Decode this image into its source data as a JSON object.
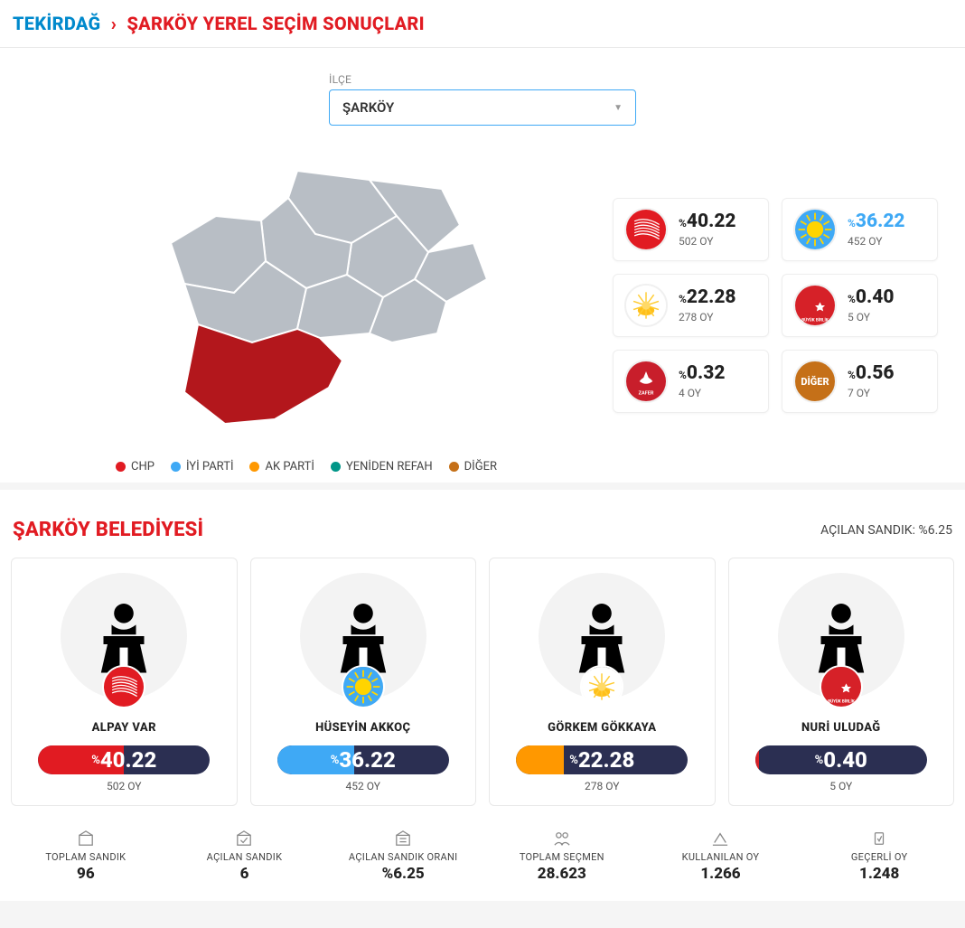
{
  "breadcrumb": {
    "province": "TEKİRDAĞ",
    "title": "ŞARKÖY YEREL SEÇİM SONUÇLARI"
  },
  "dropdown": {
    "label": "İLÇE",
    "value": "ŞARKÖY"
  },
  "colors": {
    "chp": "#e11b22",
    "iyi": "#3fa9f5",
    "akp": "#ff9800",
    "yrefah": "#009688",
    "bbp": "#d62128",
    "zafer": "#c81e2b",
    "diger": "#c57018",
    "map_empty": "#b8bec5",
    "map_selected": "#b3171c",
    "bar_bg": "#2b2f52"
  },
  "legend": [
    {
      "label": "CHP",
      "color": "#e11b22"
    },
    {
      "label": "İYİ PARTİ",
      "color": "#3fa9f5"
    },
    {
      "label": "AK PARTİ",
      "color": "#ff9800"
    },
    {
      "label": "YENİDEN REFAH",
      "color": "#009688"
    },
    {
      "label": "DİĞER",
      "color": "#c57018"
    }
  ],
  "party_cards": [
    {
      "party": "chp",
      "pct": "40.22",
      "votes": "502 OY",
      "color": "#e11b22"
    },
    {
      "party": "iyi",
      "pct": "36.22",
      "votes": "452 OY",
      "color": "#3fa9f5"
    },
    {
      "party": "akp",
      "pct": "22.28",
      "votes": "278 OY",
      "color": "#ff9800"
    },
    {
      "party": "bbp",
      "pct": "0.40",
      "votes": "5 OY",
      "color": "#d62128"
    },
    {
      "party": "zafer",
      "pct": "0.32",
      "votes": "4 OY",
      "color": "#c81e2b"
    },
    {
      "party": "diger",
      "pct": "0.56",
      "votes": "7 OY",
      "color": "#c57018",
      "label": "DİĞER"
    }
  ],
  "municipality": {
    "title": "ŞARKÖY BELEDİYESİ",
    "opened_label": "AÇILAN SANDIK: %6.25"
  },
  "candidates": [
    {
      "name": "ALPAY VAR",
      "party": "chp",
      "pct": "40.22",
      "votes": "502 OY",
      "bar_width": "50%",
      "bar_color": "#e11b22"
    },
    {
      "name": "HÜSEYİN AKKOÇ",
      "party": "iyi",
      "pct": "36.22",
      "votes": "452 OY",
      "bar_width": "45%",
      "bar_color": "#3fa9f5"
    },
    {
      "name": "GÖRKEM GÖKKAYA",
      "party": "akp",
      "pct": "22.28",
      "votes": "278 OY",
      "bar_width": "28%",
      "bar_color": "#ff9800"
    },
    {
      "name": "NURİ ULUDAĞ",
      "party": "bbp",
      "pct": "0.40",
      "votes": "5 OY",
      "bar_width": "2%",
      "bar_color": "#d62128"
    }
  ],
  "stats": [
    {
      "label": "TOPLAM SANDIK",
      "value": "96"
    },
    {
      "label": "AÇILAN SANDIK",
      "value": "6"
    },
    {
      "label": "AÇILAN SANDIK ORANI",
      "value": "%6.25"
    },
    {
      "label": "TOPLAM SEÇMEN",
      "value": "28.623"
    },
    {
      "label": "KULLANILAN OY",
      "value": "1.266"
    },
    {
      "label": "GEÇERLİ OY",
      "value": "1.248"
    }
  ]
}
